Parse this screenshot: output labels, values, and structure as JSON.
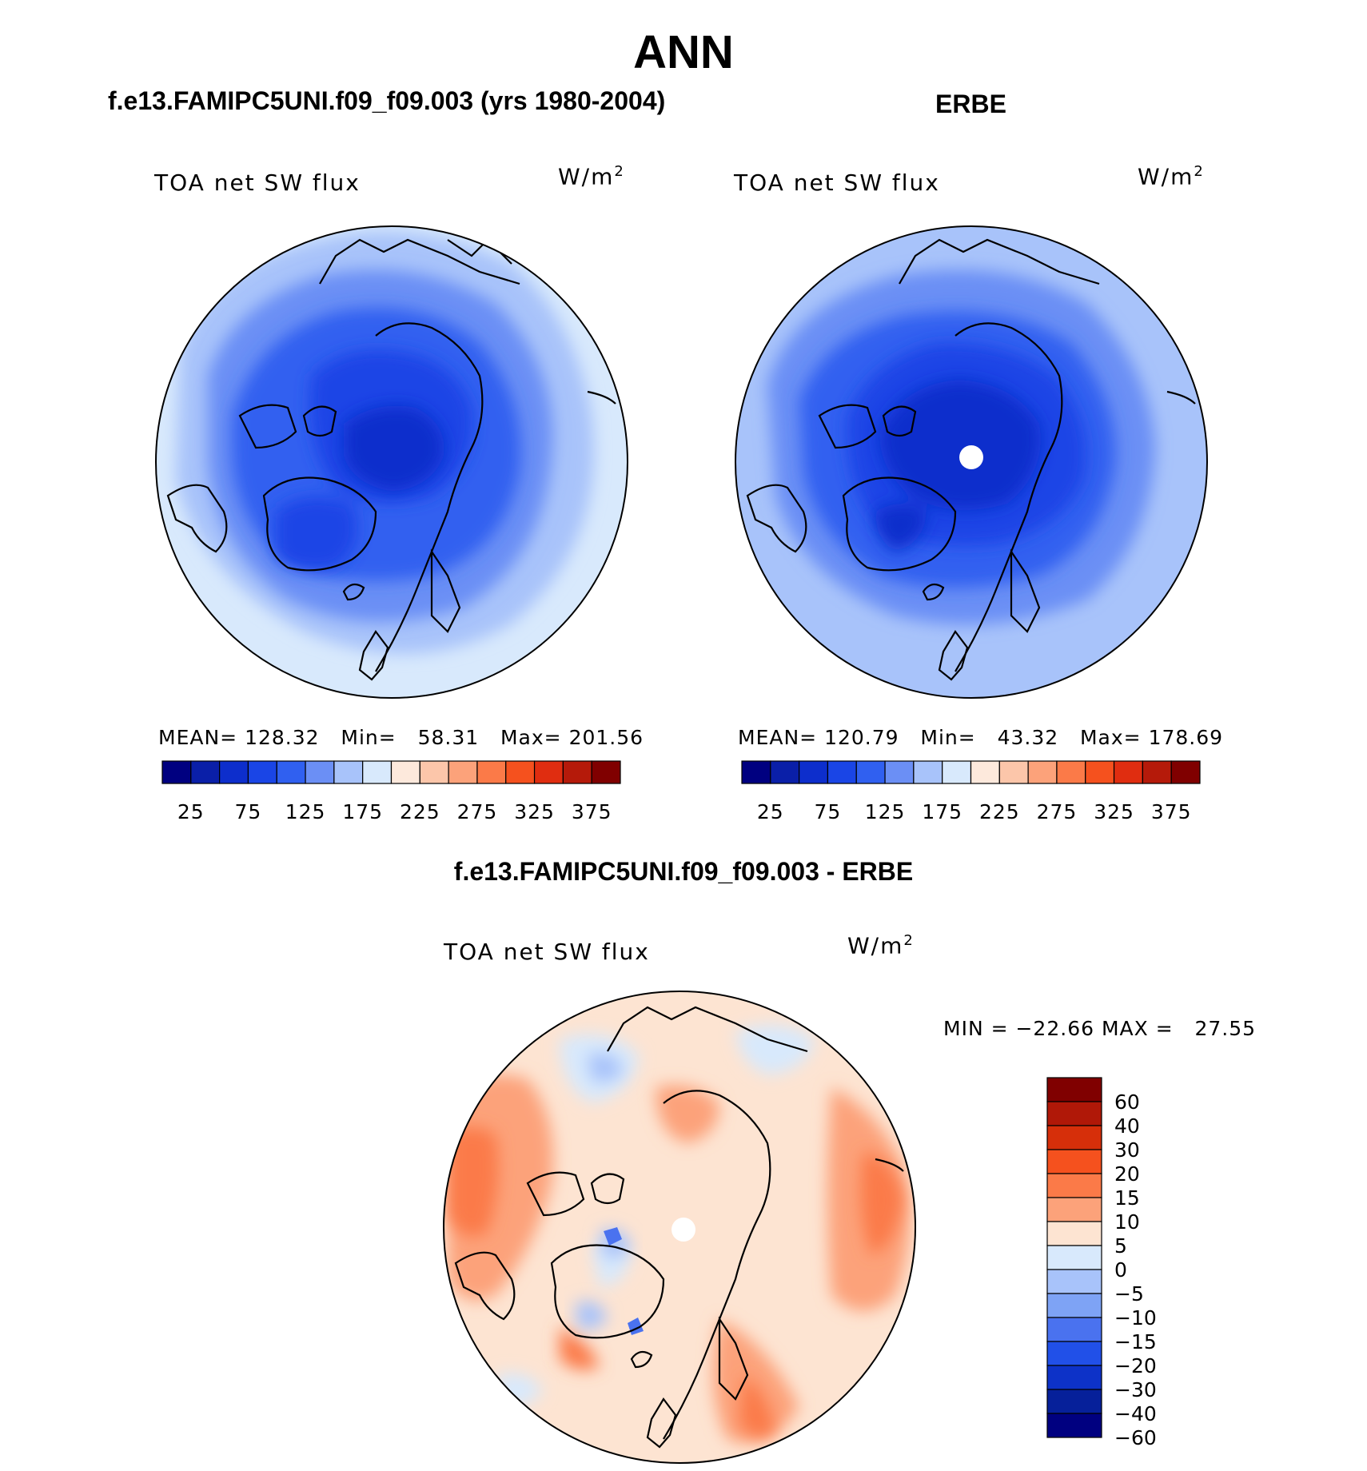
{
  "main_title": "ANN",
  "panels": [
    {
      "title": "f.e13.FAMIPC5UNI.f09_f09.003 (yrs 1980-2004)",
      "variable": "TOA net SW flux",
      "units_base": "W/m",
      "units_exp": "2",
      "stats": {
        "mean_label": "MEAN=",
        "mean": "128.32",
        "min_label": "Min=",
        "min": "58.31",
        "max_label": "Max=",
        "max": "201.56"
      }
    },
    {
      "title": "ERBE",
      "variable": "TOA net SW flux",
      "units_base": "W/m",
      "units_exp": "2",
      "stats": {
        "mean_label": "MEAN=",
        "mean": "120.79",
        "min_label": "Min=",
        "min": "43.32",
        "max_label": "Max=",
        "max": "178.69"
      }
    }
  ],
  "top_colorbar": {
    "colors": [
      "#000080",
      "#0a1fa8",
      "#0d2ecc",
      "#1a45e6",
      "#3060f0",
      "#6b8ff5",
      "#a8c3fa",
      "#d8e9fc",
      "#fde9dc",
      "#fcc6aa",
      "#fca27a",
      "#fb7a48",
      "#f5511e",
      "#e02d10",
      "#b51a0a",
      "#800000"
    ],
    "labels": [
      "25",
      "75",
      "125",
      "175",
      "225",
      "275",
      "325",
      "375"
    ]
  },
  "diff_panel": {
    "title": "f.e13.FAMIPC5UNI.f09_f09.003 - ERBE",
    "variable": "TOA net SW flux",
    "units_base": "W/m",
    "units_exp": "2",
    "minmax": "MIN = −22.66 MAX =   27.55"
  },
  "diff_colorbar": {
    "colors_top_to_bottom": [
      "#800000",
      "#b01808",
      "#d62f0a",
      "#f5511e",
      "#fb7a48",
      "#fca27a",
      "#fde4d2",
      "#d8e9fc",
      "#a8c3fa",
      "#7ea3f5",
      "#4a72ef",
      "#2150e8",
      "#0d32c8",
      "#06209a",
      "#000080"
    ],
    "labels_top_to_bottom": [
      "60",
      "40",
      "30",
      "20",
      "15",
      "10",
      "5",
      "0",
      "−5",
      "−10",
      "−15",
      "−20",
      "−30",
      "−40",
      "−60"
    ]
  },
  "map_colors": {
    "model_levels": [
      "#d8e9fc",
      "#a8c3fa",
      "#6b8ff5",
      "#3060f0",
      "#1a45e6",
      "#0d2ecc"
    ],
    "erbe_levels": [
      "#a8c3fa",
      "#6b8ff5",
      "#3060f0",
      "#1a45e6",
      "#0d2ecc"
    ],
    "diff_base": "#fde4d2",
    "diff_pos": [
      "#fca27a",
      "#fb7a48"
    ],
    "diff_neg": [
      "#d8e9fc",
      "#a8c3fa",
      "#4a72ef"
    ]
  }
}
